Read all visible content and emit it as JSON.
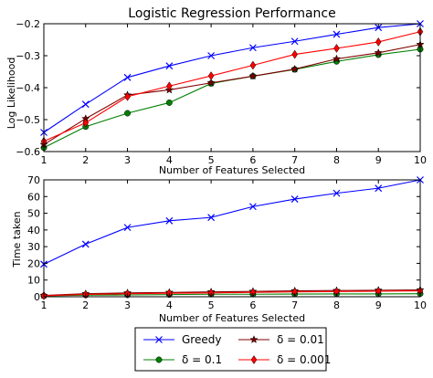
{
  "chart_data": [
    {
      "type": "line",
      "title": "Logistic Regression Performance",
      "xlabel": "Number of Features Selected",
      "ylabel": "Log Likelihood",
      "xlim": [
        1,
        10
      ],
      "ylim": [
        -0.6,
        -0.2
      ],
      "x": [
        1,
        2,
        3,
        4,
        5,
        6,
        7,
        8,
        9,
        10
      ],
      "xticks": [
        "1",
        "2",
        "3",
        "4",
        "5",
        "6",
        "7",
        "8",
        "9",
        "10"
      ],
      "yticks": [
        -0.6,
        -0.5,
        -0.4,
        -0.3,
        -0.2
      ],
      "ytick_labels": [
        "−0.6",
        "−0.5",
        "−0.4",
        "−0.3",
        "−0.2"
      ],
      "grid": false,
      "series": [
        {
          "name": "Greedy",
          "color": "#0000ff",
          "marker": "x",
          "values": [
            -0.54,
            -0.452,
            -0.368,
            -0.332,
            -0.3,
            -0.275,
            -0.255,
            -0.233,
            -0.212,
            -0.2
          ]
        },
        {
          "name": "δ = 0.1",
          "color": "#007f00",
          "marker": "circle",
          "values": [
            -0.588,
            -0.522,
            -0.48,
            -0.447,
            -0.387,
            -0.364,
            -0.343,
            -0.318,
            -0.297,
            -0.28
          ]
        },
        {
          "name": "δ = 0.01",
          "color": "#7f0000",
          "marker": "star",
          "values": [
            -0.578,
            -0.497,
            -0.423,
            -0.407,
            -0.385,
            -0.364,
            -0.342,
            -0.31,
            -0.291,
            -0.265
          ]
        },
        {
          "name": "δ = 0.001",
          "color": "#ff0000",
          "marker": "diamond",
          "values": [
            -0.568,
            -0.51,
            -0.428,
            -0.395,
            -0.363,
            -0.33,
            -0.296,
            -0.277,
            -0.257,
            -0.225
          ]
        }
      ]
    },
    {
      "type": "line",
      "title": "",
      "xlabel": "Number of Features Selected",
      "ylabel": "Time taken",
      "xlim": [
        1,
        10
      ],
      "ylim": [
        0,
        70
      ],
      "x": [
        1,
        2,
        3,
        4,
        5,
        6,
        7,
        8,
        9,
        10
      ],
      "xticks": [
        "1",
        "2",
        "3",
        "4",
        "5",
        "6",
        "7",
        "8",
        "9",
        "10"
      ],
      "yticks": [
        0,
        10,
        20,
        30,
        40,
        50,
        60,
        70
      ],
      "ytick_labels": [
        "0",
        "10",
        "20",
        "30",
        "40",
        "50",
        "60",
        "70"
      ],
      "grid": false,
      "series": [
        {
          "name": "Greedy",
          "color": "#0000ff",
          "marker": "x",
          "values": [
            19.5,
            31.5,
            41.5,
            45.5,
            47.5,
            54,
            58.5,
            62,
            65,
            70
          ]
        },
        {
          "name": "δ = 0.1",
          "color": "#007f00",
          "marker": "circle",
          "values": [
            0.5,
            1,
            1.1,
            1.3,
            1.5,
            1.5,
            1.6,
            1.7,
            1.7,
            1.8
          ]
        },
        {
          "name": "δ = 0.01",
          "color": "#7f0000",
          "marker": "star",
          "values": [
            0.8,
            1.8,
            2.3,
            2.6,
            2.9,
            3.2,
            3.5,
            3.7,
            3.9,
            4.1
          ]
        },
        {
          "name": "δ = 0.001",
          "color": "#ff0000",
          "marker": "diamond",
          "values": [
            0.6,
            1.4,
            1.8,
            2.1,
            2.3,
            2.6,
            2.9,
            3.1,
            3.3,
            3.5
          ]
        }
      ]
    }
  ],
  "legend": {
    "placement": "bottom-center",
    "entries": [
      {
        "label": "Greedy",
        "color": "#0000ff",
        "marker": "x"
      },
      {
        "label": "δ = 0.01",
        "color": "#7f0000",
        "marker": "star"
      },
      {
        "label": "δ = 0.1",
        "color": "#007f00",
        "marker": "circle"
      },
      {
        "label": "δ = 0.001",
        "color": "#ff0000",
        "marker": "diamond"
      }
    ]
  }
}
